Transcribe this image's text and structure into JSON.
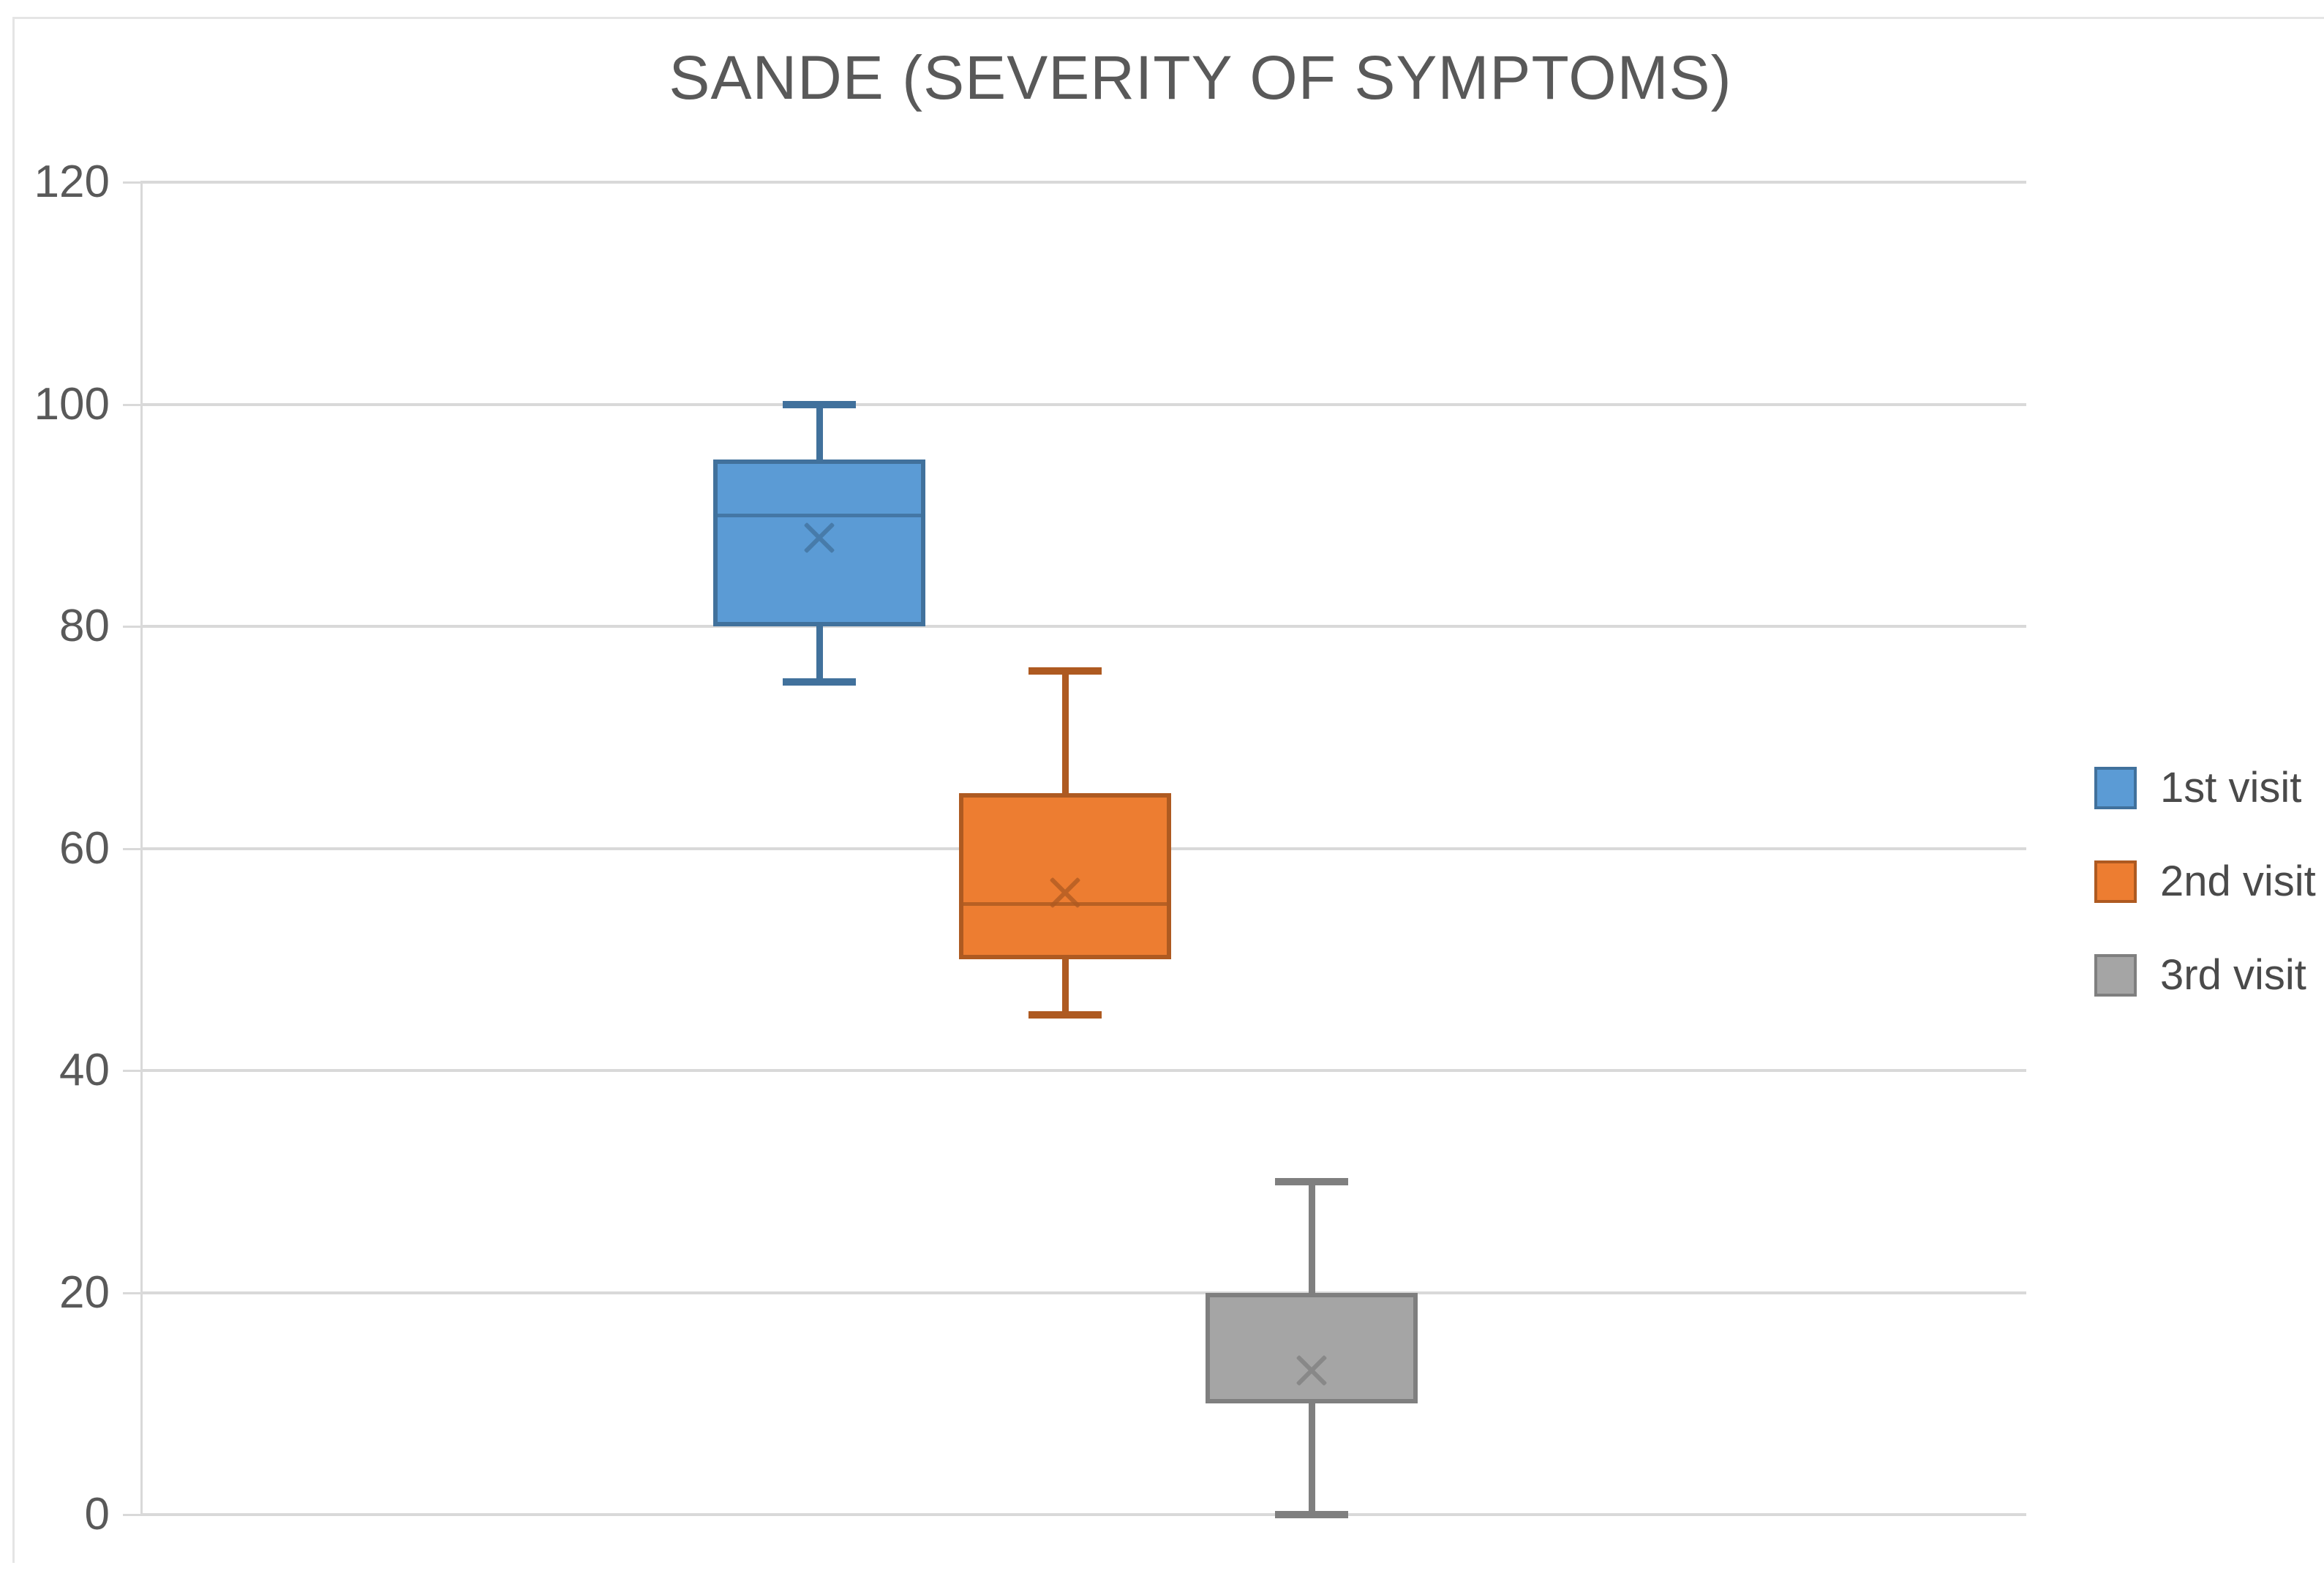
{
  "chart_data": {
    "type": "boxplot",
    "title": "SANDE (SEVERITY OF SYMPTOMS)",
    "xlabel": "",
    "ylabel": "",
    "ylim": [
      0,
      120
    ],
    "ytick_step": 20,
    "yticks": [
      0,
      20,
      40,
      60,
      80,
      100,
      120
    ],
    "ytick_labels": [
      "0",
      "20",
      "40",
      "60",
      "80",
      "100",
      "120"
    ],
    "grid": true,
    "legend_position": "right",
    "series": [
      {
        "name": "1st visit",
        "min": 75,
        "q1": 80,
        "median": 90,
        "q3": 95,
        "max": 100,
        "mean": 88,
        "fill": "#5B9BD5",
        "stroke": "#41719C"
      },
      {
        "name": "2nd visit",
        "min": 45,
        "q1": 50,
        "median": 55,
        "q3": 65,
        "max": 76,
        "mean": 56,
        "fill": "#ED7D31",
        "stroke": "#AE5A21"
      },
      {
        "name": "3rd visit",
        "min": 0,
        "q1": 10,
        "median": 10,
        "q3": 20,
        "max": 30,
        "mean": 13,
        "fill": "#A5A5A5",
        "stroke": "#7F7F7F"
      }
    ]
  },
  "style_colors": {
    "title_text": "#595959",
    "axis_text": "#595959",
    "gridline": "#D9D9D9",
    "legend_text": "#4A4A4A",
    "frame_border": "#E5E5E5"
  }
}
